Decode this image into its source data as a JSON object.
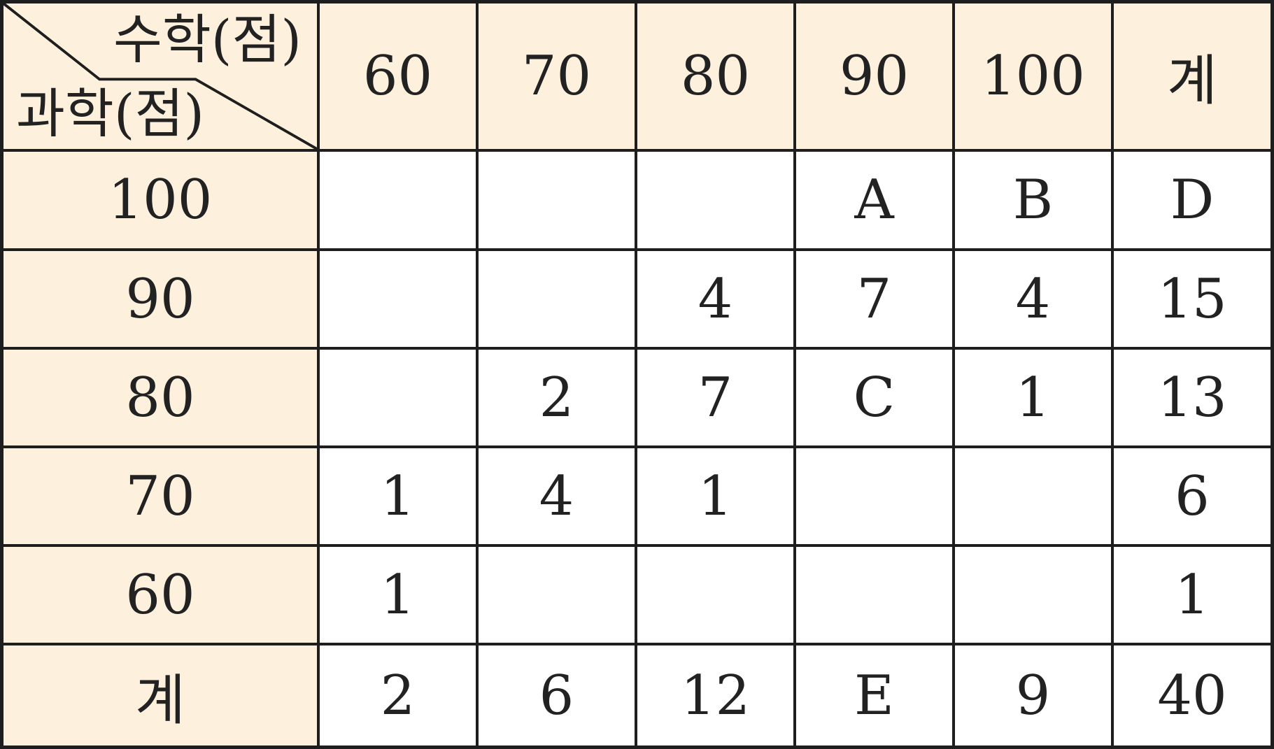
{
  "table": {
    "corner": {
      "col_axis_label": "수학(점)",
      "row_axis_label": "과학(점)"
    },
    "column_headers": [
      "60",
      "70",
      "80",
      "90",
      "100",
      "계"
    ],
    "rows": [
      {
        "label": "100",
        "cells": [
          "",
          "",
          "",
          "A",
          "B",
          "D"
        ]
      },
      {
        "label": "90",
        "cells": [
          "",
          "",
          "4",
          "7",
          "4",
          "15"
        ]
      },
      {
        "label": "80",
        "cells": [
          "",
          "2",
          "7",
          "C",
          "1",
          "13"
        ]
      },
      {
        "label": "70",
        "cells": [
          "1",
          "4",
          "1",
          "",
          "",
          "6"
        ]
      },
      {
        "label": "60",
        "cells": [
          "1",
          "",
          "",
          "",
          "",
          "1"
        ]
      },
      {
        "label": "계",
        "cells": [
          "2",
          "6",
          "12",
          "E",
          "9",
          "40"
        ]
      }
    ]
  },
  "colors": {
    "header_bg": "#fdf1dd",
    "border": "#1e1e1e",
    "text": "#222222"
  }
}
